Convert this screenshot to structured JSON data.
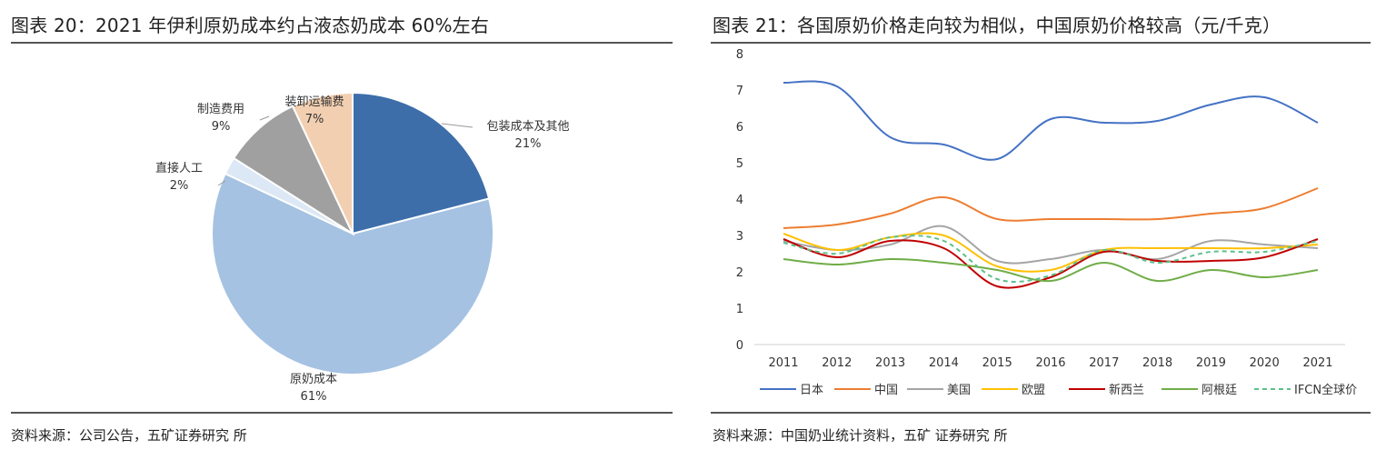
{
  "left_panel": {
    "title": "图表 20：2021 年伊利原奶成本约占液态奶成本 60%左右",
    "source": "资料来源：公司公告，五矿证券研究 所"
  },
  "right_panel": {
    "title": "图表 21：各国原奶价格走向较为相似，中国原奶价格较高（元/千克）",
    "source": "资料来源：中国奶业统计资料，五矿 证券研究 所"
  },
  "chart_data": [
    {
      "type": "pie",
      "start_angle_deg": 0,
      "direction": "clockwise",
      "slices": [
        {
          "label": "包装成本及其他",
          "value": 21,
          "pct_label": "21%",
          "color": "#3d6eaa"
        },
        {
          "label": "原奶成本",
          "value": 61,
          "pct_label": "61%",
          "color": "#a5c2e2"
        },
        {
          "label": "直接人工",
          "value": 2,
          "pct_label": "2%",
          "color": "#dce8f5"
        },
        {
          "label": "制造费用",
          "value": 9,
          "pct_label": "9%",
          "color": "#a0a0a0"
        },
        {
          "label": "装卸运输费",
          "value": 7,
          "pct_label": "7%",
          "color": "#f2cfb1"
        }
      ]
    },
    {
      "type": "line",
      "x": [
        2011,
        2012,
        2013,
        2014,
        2015,
        2016,
        2017,
        2018,
        2019,
        2020,
        2021
      ],
      "ylim": [
        0,
        8
      ],
      "yticks": [
        0,
        1,
        2,
        3,
        4,
        5,
        6,
        7,
        8
      ],
      "legend_position": "bottom",
      "series": [
        {
          "name": "日本",
          "color": "#4472c4",
          "dash": false,
          "values": [
            7.2,
            7.1,
            5.7,
            5.5,
            5.1,
            6.2,
            6.1,
            6.15,
            6.6,
            6.8,
            6.1
          ]
        },
        {
          "name": "中国",
          "color": "#ed7d31",
          "dash": false,
          "values": [
            3.2,
            3.3,
            3.6,
            4.05,
            3.45,
            3.45,
            3.45,
            3.45,
            3.6,
            3.75,
            4.3
          ]
        },
        {
          "name": "美国",
          "color": "#a5a5a5",
          "dash": false,
          "values": [
            2.85,
            2.6,
            2.75,
            3.25,
            2.3,
            2.35,
            2.6,
            2.35,
            2.85,
            2.75,
            2.65
          ]
        },
        {
          "name": "欧盟",
          "color": "#ffc000",
          "dash": false,
          "values": [
            3.05,
            2.6,
            2.95,
            3.0,
            2.15,
            2.05,
            2.6,
            2.65,
            2.65,
            2.65,
            2.75
          ]
        },
        {
          "name": "新西兰",
          "color": "#c00000",
          "dash": false,
          "values": [
            2.9,
            2.4,
            2.85,
            2.65,
            1.6,
            1.85,
            2.55,
            2.3,
            2.3,
            2.4,
            2.9
          ]
        },
        {
          "name": "阿根廷",
          "color": "#70ad47",
          "dash": false,
          "values": [
            2.35,
            2.2,
            2.35,
            2.25,
            2.05,
            1.75,
            2.25,
            1.75,
            2.05,
            1.85,
            2.05
          ]
        },
        {
          "name": "IFCN全球价",
          "color": "#5cc08a",
          "dash": true,
          "values": [
            2.8,
            2.5,
            2.95,
            2.85,
            1.8,
            1.9,
            2.6,
            2.25,
            2.55,
            2.55,
            2.85
          ]
        }
      ]
    }
  ]
}
